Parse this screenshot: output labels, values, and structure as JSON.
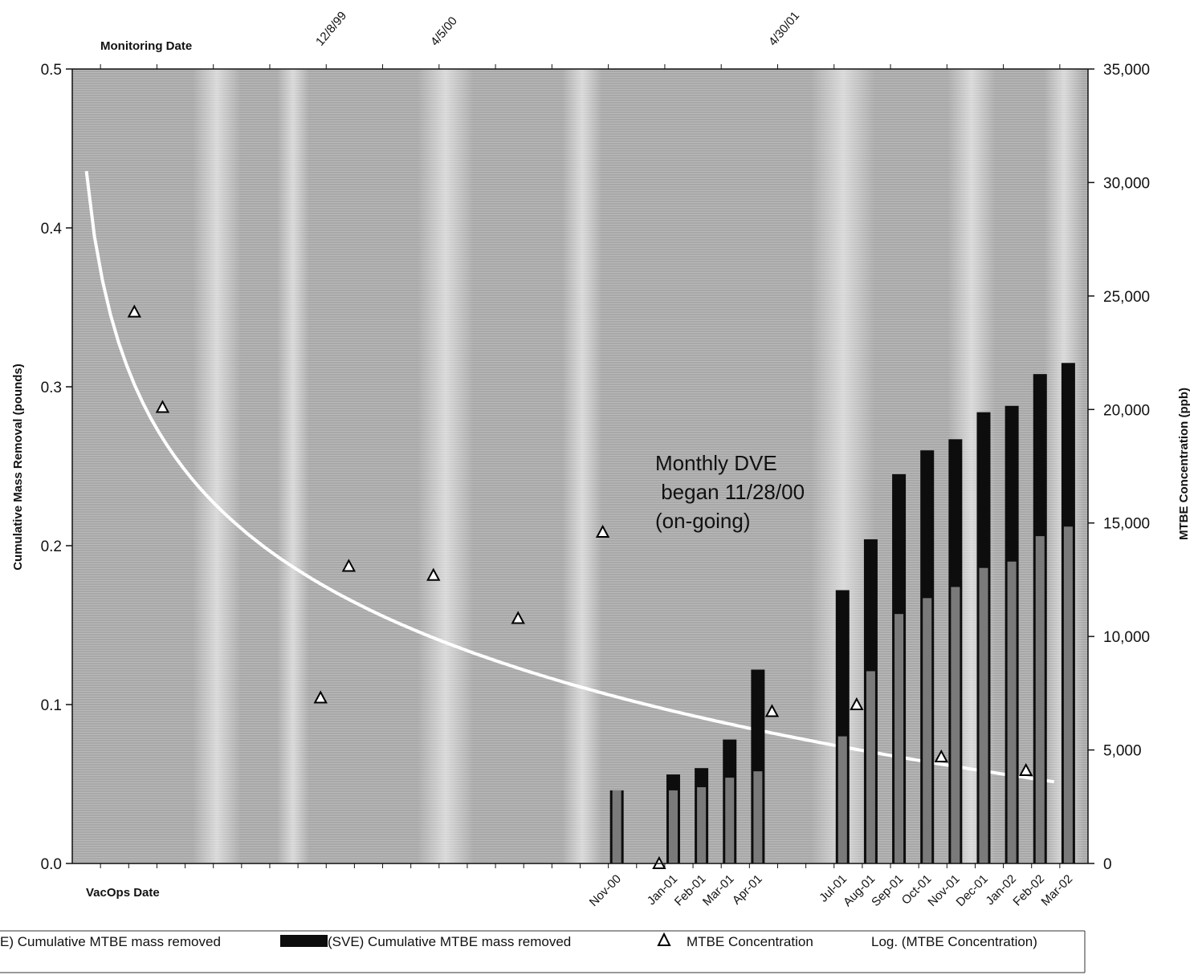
{
  "chart_data": {
    "type": "bar",
    "title": "",
    "top_axis": {
      "label": "Monitoring Date",
      "ticks": [
        "12/8/99",
        "4/5/00",
        "4/30/01"
      ]
    },
    "bottom_axis": {
      "label": "VacOps Date"
    },
    "left_axis": {
      "label": "Cumulative Mass Removal (pounds)",
      "range": [
        0,
        0.5
      ],
      "ticks": [
        "0.0",
        "0.1",
        "0.2",
        "0.3",
        "0.4",
        "0.5"
      ]
    },
    "right_axis": {
      "label": "MTBE Concentration (ppb)",
      "range": [
        0,
        35000
      ],
      "ticks": [
        "0",
        "5,000",
        "10,000",
        "15,000",
        "20,000",
        "25,000",
        "30,000",
        "35,000"
      ]
    },
    "categories": [
      "Nov-00",
      "Jan-01",
      "Feb-01",
      "Mar-01",
      "Apr-01",
      "Jul-01",
      "Aug-01",
      "Sep-01",
      "Oct-01",
      "Nov-01",
      "Dec-01",
      "Jan-02",
      "Feb-02",
      "Mar-02"
    ],
    "series": [
      {
        "name": "(DVE) Cumulative MTBE mass removed",
        "legend_label": "E) Cumulative MTBE mass removed",
        "color": "#7a7a7a",
        "values": [
          0.046,
          0.046,
          0.048,
          0.054,
          0.058,
          0.08,
          0.121,
          0.157,
          0.167,
          0.174,
          0.186,
          0.19,
          0.206,
          0.212
        ]
      },
      {
        "name": "(SVE) Cumulative MTBE mass removed",
        "legend_label": "(SVE) Cumulative MTBE mass removed",
        "color": "#0d0d0d",
        "values": [
          0.046,
          0.056,
          0.06,
          0.078,
          0.122,
          0.172,
          0.204,
          0.245,
          0.26,
          0.267,
          0.284,
          0.288,
          0.308,
          0.315
        ]
      }
    ],
    "mtbe_concentration": {
      "name": "MTBE Concentration",
      "unit": "ppb",
      "points": [
        {
          "x": 2.2,
          "y": 24300
        },
        {
          "x": 3.2,
          "y": 20100
        },
        {
          "x": 8.8,
          "y": 7300
        },
        {
          "x": 9.8,
          "y": 13100
        },
        {
          "x": 12.8,
          "y": 12700
        },
        {
          "x": 15.8,
          "y": 10800
        },
        {
          "x": 18.8,
          "y": 14600
        },
        {
          "x": 20.8,
          "y": 0
        },
        {
          "x": 24.8,
          "y": 6700
        },
        {
          "x": 27.8,
          "y": 7000
        },
        {
          "x": 30.8,
          "y": 4700
        },
        {
          "x": 33.8,
          "y": 4100
        }
      ]
    },
    "trendline": {
      "name": "Log. (MTBE Concentration)",
      "color": "#ffffff",
      "type": "logarithmic",
      "points": [
        {
          "x": 0.5,
          "y": 30500
        },
        {
          "x": 34.8,
          "y": 3600
        }
      ]
    },
    "annotation": [
      "Monthly DVE",
      " began 11/28/00",
      "(on-going)"
    ],
    "legend": {
      "position": "bottom",
      "entries": [
        "E) Cumulative MTBE mass removed",
        "(SVE) Cumulative MTBE mass removed",
        "MTBE Concentration",
        "Log. (MTBE Concentration)"
      ]
    },
    "colors": {
      "plot_background": "#a9a9a9",
      "dve_bar": "#7a7a7a",
      "sve_bar": "#0d0d0d",
      "marker": "#000000",
      "trendline": "#ffffff"
    }
  }
}
